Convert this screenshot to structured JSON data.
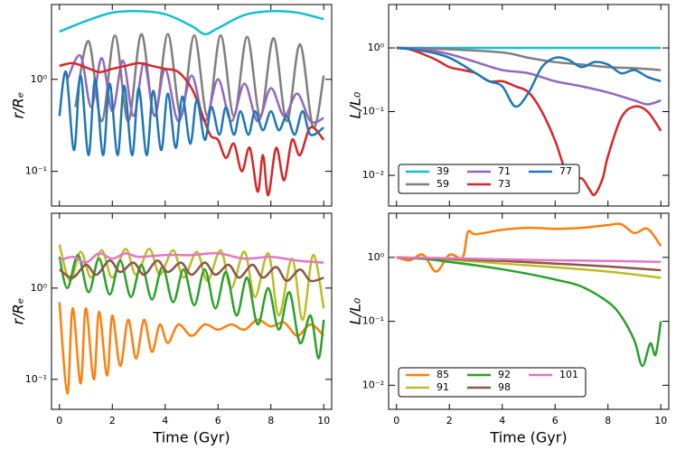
{
  "chart_data": [
    {
      "type": "line",
      "ylabel": "r/Rₑ",
      "yscale": "log",
      "xlim": [
        -0.3,
        10.3
      ],
      "ylim": [
        0.042,
        6.5
      ],
      "xticks": [
        0,
        2,
        4,
        6,
        8,
        10
      ],
      "yticks": [
        {
          "value": 0.1,
          "label": "10⁻¹"
        },
        {
          "value": 1,
          "label": "10⁰"
        }
      ],
      "series": [
        {
          "color": "#17becf",
          "x": [
            0,
            1,
            2,
            3,
            4,
            5,
            5.5,
            6,
            7,
            8,
            9,
            10
          ],
          "values": [
            3.3,
            4.3,
            5.3,
            5.5,
            5.1,
            3.8,
            3.1,
            3.6,
            5.0,
            5.5,
            5.3,
            4.5
          ]
        },
        {
          "color": "#7f7f7f",
          "x": [
            0.6,
            1.1,
            1.6,
            2.1,
            2.6,
            3.1,
            3.6,
            4.1,
            4.6,
            5.1,
            5.6,
            6.1,
            6.6,
            7.1,
            7.6,
            8.1,
            8.6,
            9.1,
            9.6,
            10
          ],
          "values": [
            0.5,
            2.6,
            0.35,
            3.0,
            0.35,
            3.1,
            0.4,
            3.1,
            0.4,
            3.0,
            0.4,
            3.0,
            0.4,
            2.9,
            0.4,
            2.8,
            0.35,
            2.4,
            0.3,
            1.1
          ]
        },
        {
          "color": "#9467bd",
          "x": [
            0.3,
            0.8,
            1.2,
            1.6,
            2.0,
            2.4,
            2.8,
            3.2,
            3.6,
            4.0,
            4.5,
            5.0,
            5.5,
            6.0,
            6.5,
            7.0,
            7.5,
            8.0,
            8.5,
            9.0,
            9.5,
            10
          ],
          "values": [
            1.0,
            1.8,
            0.5,
            1.7,
            0.45,
            1.6,
            0.4,
            1.5,
            0.4,
            1.3,
            0.35,
            1.1,
            0.35,
            1.0,
            0.35,
            0.9,
            0.35,
            0.8,
            0.4,
            0.7,
            0.35,
            0.38
          ]
        },
        {
          "color": "#d62728",
          "x": [
            0,
            0.5,
            1,
            1.5,
            2,
            2.5,
            3,
            3.5,
            4,
            4.5,
            5,
            5.3,
            5.7,
            6.0,
            6.3,
            6.6,
            6.9,
            7.2,
            7.5,
            7.7,
            7.9,
            8.2,
            8.5,
            8.8,
            9.1,
            9.5,
            10
          ],
          "values": [
            1.4,
            1.5,
            1.35,
            1.2,
            1.3,
            1.4,
            1.5,
            1.4,
            1.3,
            1.2,
            0.8,
            0.5,
            0.25,
            0.22,
            0.14,
            0.2,
            0.1,
            0.18,
            0.06,
            0.15,
            0.055,
            0.18,
            0.08,
            0.22,
            0.15,
            0.3,
            0.22
          ]
        },
        {
          "color": "#1f77b4",
          "x": [
            0,
            0.25,
            0.55,
            0.8,
            1.1,
            1.35,
            1.65,
            1.9,
            2.2,
            2.45,
            2.75,
            3.0,
            3.3,
            3.55,
            3.85,
            4.1,
            4.4,
            4.65,
            4.95,
            5.2,
            5.5,
            5.75,
            6.05,
            6.3,
            6.6,
            6.85,
            7.15,
            7.4,
            7.7,
            8.0,
            8.3,
            8.6,
            8.9,
            9.2,
            9.5,
            10
          ],
          "values": [
            0.4,
            1.2,
            0.17,
            1.1,
            0.15,
            1.0,
            0.15,
            0.9,
            0.15,
            0.85,
            0.15,
            0.8,
            0.15,
            0.75,
            0.17,
            0.7,
            0.18,
            0.65,
            0.2,
            0.6,
            0.22,
            0.5,
            0.25,
            0.5,
            0.25,
            0.45,
            0.25,
            0.45,
            0.28,
            0.45,
            0.28,
            0.4,
            0.25,
            0.45,
            0.25,
            0.3
          ]
        }
      ]
    },
    {
      "type": "line",
      "ylabel": "L/L₀",
      "yscale": "log",
      "xlim": [
        -0.3,
        10.3
      ],
      "ylim": [
        0.0033,
        4.8
      ],
      "legend": "lower left",
      "xticks": [
        0,
        2,
        4,
        6,
        8,
        10
      ],
      "yticks": [
        {
          "value": 0.01,
          "label": "10⁻²"
        },
        {
          "value": 0.1,
          "label": "10⁻¹"
        },
        {
          "value": 1,
          "label": "10⁰"
        }
      ],
      "series": [
        {
          "name": "39",
          "color": "#17becf",
          "x": [
            0,
            10
          ],
          "values": [
            1,
            1
          ]
        },
        {
          "name": "59",
          "color": "#7f7f7f",
          "x": [
            0,
            2,
            4,
            5,
            6,
            7,
            8,
            9,
            10
          ],
          "values": [
            1,
            0.95,
            0.85,
            0.7,
            0.6,
            0.55,
            0.5,
            0.48,
            0.45
          ]
        },
        {
          "name": "71",
          "color": "#9467bd",
          "x": [
            0,
            1,
            2,
            3,
            4,
            5,
            6,
            7,
            8,
            9,
            9.5,
            10
          ],
          "values": [
            1,
            0.95,
            0.8,
            0.6,
            0.45,
            0.4,
            0.3,
            0.25,
            0.2,
            0.15,
            0.13,
            0.15
          ]
        },
        {
          "name": "73",
          "color": "#d62728",
          "x": [
            0,
            0.5,
            1,
            1.5,
            2,
            2.5,
            3,
            3.5,
            4,
            4.5,
            5,
            5.5,
            6,
            6.3,
            6.6,
            7,
            7.3,
            7.5,
            7.8,
            8,
            8.5,
            9,
            9.5,
            10
          ],
          "values": [
            1,
            0.95,
            0.8,
            0.65,
            0.5,
            0.45,
            0.4,
            0.3,
            0.3,
            0.25,
            0.2,
            0.1,
            0.035,
            0.015,
            0.008,
            0.009,
            0.006,
            0.005,
            0.009,
            0.02,
            0.08,
            0.12,
            0.1,
            0.05
          ]
        },
        {
          "name": "77",
          "color": "#1f77b4",
          "x": [
            0,
            1,
            2,
            3,
            3.5,
            4,
            4.5,
            5,
            5.5,
            6,
            6.5,
            7,
            7.5,
            8,
            8.5,
            9,
            9.5,
            10
          ],
          "values": [
            1,
            0.9,
            0.7,
            0.4,
            0.3,
            0.25,
            0.12,
            0.2,
            0.5,
            0.7,
            0.65,
            0.5,
            0.6,
            0.55,
            0.4,
            0.45,
            0.35,
            0.3
          ]
        }
      ]
    },
    {
      "type": "line",
      "ylabel": "r/Rₑ",
      "xlabel": "Time (Gyr)",
      "yscale": "log",
      "xlim": [
        -0.3,
        10.3
      ],
      "ylim": [
        0.047,
        6.6
      ],
      "xticks": [
        0,
        2,
        4,
        6,
        8,
        10
      ],
      "yticks": [
        {
          "value": 0.1,
          "label": "10⁻¹"
        },
        {
          "value": 1,
          "label": "10⁰"
        }
      ],
      "series": [
        {
          "color": "#ff7f0e",
          "x": [
            0,
            0.3,
            0.5,
            0.8,
            1.0,
            1.3,
            1.5,
            1.8,
            2.0,
            2.3,
            2.6,
            2.9,
            3.2,
            3.5,
            3.8,
            4.1,
            4.5,
            5,
            5.5,
            6,
            6.5,
            7,
            7.5,
            8,
            8.5,
            9,
            9.5,
            10
          ],
          "values": [
            0.7,
            0.07,
            0.6,
            0.09,
            0.6,
            0.1,
            0.55,
            0.11,
            0.5,
            0.14,
            0.45,
            0.17,
            0.45,
            0.2,
            0.4,
            0.25,
            0.4,
            0.3,
            0.4,
            0.35,
            0.4,
            0.35,
            0.45,
            0.38,
            0.42,
            0.3,
            0.4,
            0.3
          ]
        },
        {
          "color": "#bcbd22",
          "x": [
            0,
            0.4,
            0.8,
            1.2,
            1.6,
            2.0,
            2.5,
            2.9,
            3.4,
            3.8,
            4.3,
            4.7,
            5.2,
            5.6,
            6.1,
            6.5,
            7.0,
            7.4,
            7.9,
            8.3,
            8.8,
            9.2,
            9.6,
            10
          ],
          "values": [
            3.0,
            1.2,
            2.5,
            1.3,
            2.6,
            1.3,
            2.7,
            1.4,
            2.7,
            1.4,
            2.6,
            1.3,
            2.5,
            1.2,
            2.6,
            1.0,
            2.5,
            0.8,
            2.4,
            0.5,
            2.1,
            0.45,
            2.3,
            0.6
          ]
        },
        {
          "color": "#2ca02c",
          "x": [
            0,
            0.3,
            0.7,
            1.1,
            1.5,
            1.9,
            2.3,
            2.7,
            3.1,
            3.5,
            3.9,
            4.3,
            4.7,
            5.1,
            5.5,
            5.9,
            6.3,
            6.7,
            7.1,
            7.5,
            7.9,
            8.3,
            8.7,
            9.1,
            9.5,
            9.8,
            10
          ],
          "values": [
            2.2,
            1.0,
            2.3,
            0.9,
            2.1,
            0.85,
            2.0,
            0.8,
            1.8,
            0.75,
            1.7,
            0.7,
            1.6,
            0.65,
            1.6,
            0.6,
            1.5,
            0.5,
            1.3,
            0.4,
            1.0,
            0.35,
            0.9,
            0.25,
            0.5,
            0.17,
            0.45
          ]
        },
        {
          "color": "#8c564b",
          "x": [
            0,
            0.5,
            1,
            1.4,
            1.9,
            2.3,
            2.8,
            3.2,
            3.7,
            4.1,
            4.6,
            5,
            5.5,
            5.9,
            6.4,
            6.8,
            7.3,
            7.7,
            8.2,
            8.6,
            9.1,
            9.5,
            10
          ],
          "values": [
            1.6,
            1.3,
            1.8,
            1.4,
            2.0,
            1.5,
            1.9,
            1.4,
            2.0,
            1.5,
            1.9,
            1.4,
            1.9,
            1.4,
            1.8,
            1.3,
            1.8,
            1.3,
            1.7,
            1.2,
            1.6,
            1.2,
            1.3
          ]
        },
        {
          "color": "#e377c2",
          "x": [
            0,
            0.5,
            1,
            1.5,
            2,
            2.5,
            3,
            4,
            5,
            6,
            7,
            8,
            9,
            10
          ],
          "values": [
            2.0,
            2.2,
            1.9,
            2.4,
            2.1,
            2.4,
            2.2,
            2.3,
            2.3,
            2.4,
            2.1,
            2.2,
            2.0,
            1.9
          ]
        }
      ]
    },
    {
      "type": "line",
      "ylabel": "L/L₀",
      "xlabel": "Time (Gyr)",
      "yscale": "log",
      "xlim": [
        -0.3,
        10.3
      ],
      "ylim": [
        0.0042,
        4.9
      ],
      "legend": "lower left",
      "xticks": [
        0,
        2,
        4,
        6,
        8,
        10
      ],
      "yticks": [
        {
          "value": 0.01,
          "label": "10⁻²"
        },
        {
          "value": 0.1,
          "label": "10⁻¹"
        },
        {
          "value": 1,
          "label": "10⁰"
        }
      ],
      "series": [
        {
          "name": "85",
          "color": "#ff7f0e",
          "x": [
            0,
            0.5,
            1,
            1.5,
            2,
            2.5,
            2.7,
            3,
            4,
            5,
            6,
            7,
            8,
            8.5,
            9,
            9.5,
            10
          ],
          "values": [
            1,
            0.9,
            1.1,
            0.6,
            1.1,
            1.0,
            2.5,
            2.3,
            2.7,
            2.9,
            2.8,
            2.9,
            3.2,
            3.3,
            2.4,
            2.8,
            1.5
          ]
        },
        {
          "name": "91",
          "color": "#bcbd22",
          "x": [
            0,
            2,
            4,
            6,
            8,
            10
          ],
          "values": [
            1,
            0.92,
            0.8,
            0.7,
            0.6,
            0.48
          ]
        },
        {
          "name": "92",
          "color": "#2ca02c",
          "x": [
            0,
            1,
            2,
            3,
            4,
            5,
            6,
            7,
            8,
            8.5,
            9,
            9.3,
            9.6,
            9.8,
            10
          ],
          "values": [
            1,
            0.95,
            0.85,
            0.75,
            0.65,
            0.55,
            0.45,
            0.35,
            0.2,
            0.12,
            0.05,
            0.02,
            0.045,
            0.03,
            0.1
          ]
        },
        {
          "name": "98",
          "color": "#8c564b",
          "x": [
            0,
            2,
            4,
            6,
            8,
            10
          ],
          "values": [
            1,
            0.95,
            0.88,
            0.8,
            0.72,
            0.63
          ]
        },
        {
          "name": "101",
          "color": "#e377c2",
          "x": [
            0,
            2,
            4,
            6,
            8,
            10
          ],
          "values": [
            1,
            0.97,
            0.93,
            0.9,
            0.88,
            0.85
          ]
        }
      ]
    }
  ]
}
